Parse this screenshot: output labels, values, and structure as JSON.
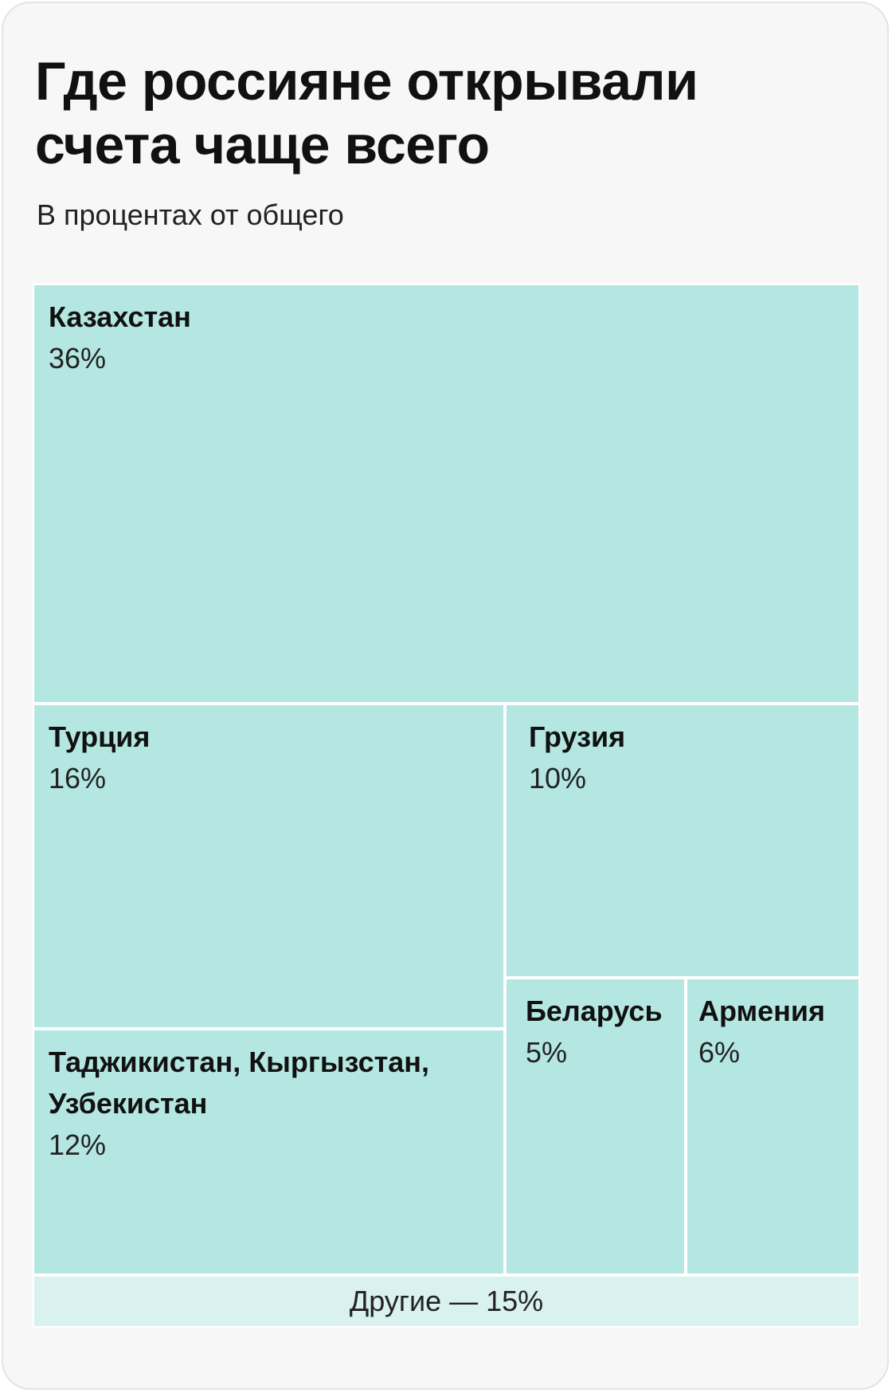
{
  "title": "Где россияне открывали счета чаще всего",
  "subtitle": "В процентах от общего",
  "colors": {
    "tile": "#b4e6e2",
    "other_tile": "#d9f1ef",
    "separator": "#ffffff",
    "background": "#f7f7f7"
  },
  "chart_data": {
    "type": "treemap",
    "title": "Где россияне открывали счета чаще всего",
    "subtitle": "В процентах от общего",
    "unit": "%",
    "items": [
      {
        "name": "Казахстан",
        "value": 36,
        "label": "36%"
      },
      {
        "name": "Турция",
        "value": 16,
        "label": "16%"
      },
      {
        "name": "Грузия",
        "value": 10,
        "label": "10%"
      },
      {
        "name": "Таджикистан, Кыргызстан, Узбекистан",
        "value": 12,
        "label": "12%"
      },
      {
        "name": "Беларусь",
        "value": 5,
        "label": "5%"
      },
      {
        "name": "Армения",
        "value": 6,
        "label": "6%"
      }
    ],
    "other": {
      "label": "Другие — 15%",
      "value": 15
    }
  }
}
